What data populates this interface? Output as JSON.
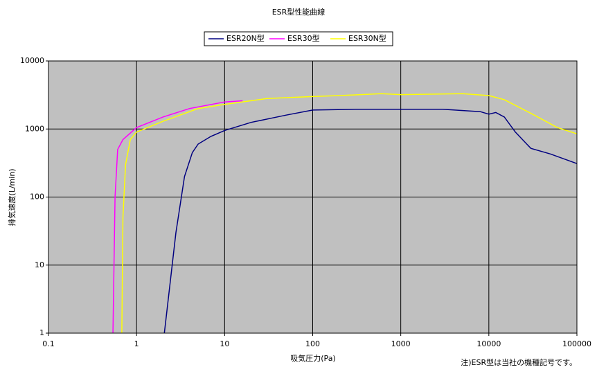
{
  "chart_data": {
    "type": "line",
    "title": "ESR型性能曲線",
    "x_label": "吸気圧力(Pa)",
    "y_label": "排気速度(L/min)",
    "annotation": "注)ESR型は当社の機種記号です。",
    "xlog": true,
    "ylog": true,
    "grid": true,
    "legend": "top",
    "plot_background": "#c0c0c0",
    "xlim": [
      0.1,
      100000
    ],
    "ylim": [
      1,
      10000
    ],
    "xticks": [
      0.1,
      1,
      10,
      100,
      1000,
      10000,
      100000
    ],
    "yticks": [
      1,
      10,
      100,
      1000,
      10000
    ],
    "series": [
      {
        "name": "ESR20N型",
        "color": "#000080",
        "x": [
          2.07,
          2.8,
          3.5,
          4.3,
          5,
          7,
          10,
          20,
          50,
          100,
          300,
          1000,
          3000,
          8000,
          10000,
          12000,
          15000,
          20000,
          30000,
          50000,
          100000
        ],
        "values": [
          1,
          30,
          200,
          450,
          600,
          780,
          950,
          1250,
          1600,
          1900,
          1950,
          1950,
          1950,
          1800,
          1650,
          1750,
          1500,
          900,
          520,
          430,
          310
        ]
      },
      {
        "name": "ESR30型",
        "color": "#ff00ff",
        "x": [
          0.54,
          0.57,
          0.61,
          0.7,
          1,
          2,
          4,
          10,
          16
        ],
        "values": [
          1,
          100,
          500,
          700,
          1050,
          1500,
          2000,
          2500,
          2600
        ]
      },
      {
        "name": "ESR30N型",
        "color": "#ffff00",
        "x": [
          0.68,
          0.7,
          0.75,
          0.85,
          1,
          2,
          5,
          10,
          30,
          100,
          200,
          600,
          1000,
          5000,
          10000,
          15000,
          30000,
          60000,
          100000
        ],
        "values": [
          1,
          50,
          300,
          700,
          900,
          1300,
          2000,
          2300,
          2800,
          3000,
          3100,
          3300,
          3200,
          3300,
          3100,
          2700,
          1700,
          1050,
          850
        ]
      }
    ]
  }
}
